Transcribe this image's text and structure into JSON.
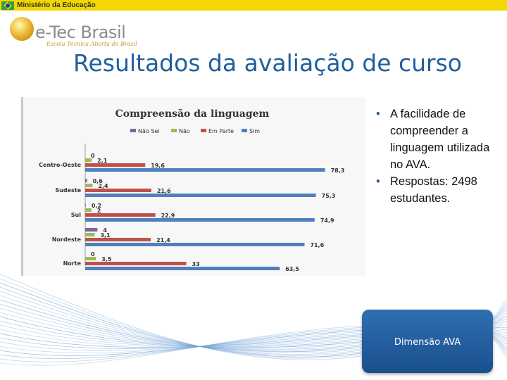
{
  "header": {
    "ministry": "Ministério da Educação",
    "logo_name": "e-Tec Brasil",
    "logo_subtitle": "Escola Técnica Aberta do Brasil"
  },
  "slide": {
    "title": "Resultados da avaliação de curso",
    "bullets": [
      "A facilidade de compreender a linguagem utilizada no AVA.",
      "Respostas: 2498 estudantes."
    ],
    "button_label": "Dimensão AVA"
  },
  "chart_data": {
    "type": "bar",
    "orientation": "horizontal",
    "title": "Compreensão da linguagem",
    "categories": [
      "Centro-Oeste",
      "Sudeste",
      "Sul",
      "Nordeste",
      "Norte"
    ],
    "series": [
      {
        "name": "Não Sei",
        "color": "#8064a2",
        "values": [
          0,
          0.6,
          0.2,
          4,
          0
        ]
      },
      {
        "name": "Não",
        "color": "#9bbb59",
        "values": [
          2.1,
          2.4,
          2,
          3.1,
          3.5
        ]
      },
      {
        "name": "Em Parte",
        "color": "#c0504d",
        "values": [
          19.6,
          21.6,
          22.9,
          21.4,
          33
        ]
      },
      {
        "name": "Sim",
        "color": "#4f81bd",
        "values": [
          78.3,
          75.3,
          74.9,
          71.6,
          63.5
        ]
      }
    ],
    "value_labels": [
      [
        "0",
        "0,6",
        "0,2",
        "4",
        "0"
      ],
      [
        "2,1",
        "2,4",
        "2",
        "3,1",
        "3,5"
      ],
      [
        "19,6",
        "21,6",
        "22,9",
        "21,4",
        "33"
      ],
      [
        "78,3",
        "75,3",
        "74,9",
        "71,6",
        "63,5"
      ]
    ],
    "xlim": [
      0,
      100
    ],
    "legend_position": "top",
    "grid": false
  }
}
